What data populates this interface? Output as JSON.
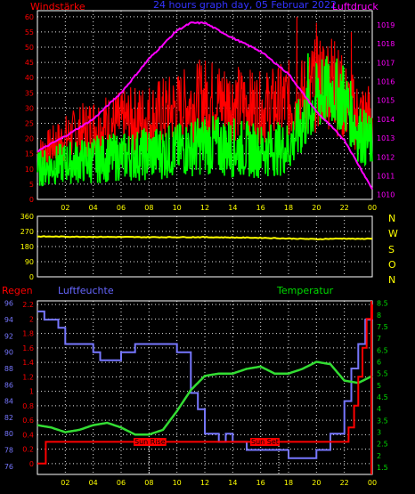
{
  "chart_data": [
    {
      "type": "line",
      "title": "24 hours graph day, 05 Februar 2022",
      "left_axis_label": "Windstärke",
      "right_axis_label": "Luftdruck",
      "x_ticks": [
        "02",
        "04",
        "06",
        "08",
        "10",
        "12",
        "14",
        "16",
        "18",
        "20",
        "22",
        "00"
      ],
      "y_left_ticks": [
        "0",
        "5",
        "10",
        "15",
        "20",
        "25",
        "30",
        "35",
        "40",
        "45",
        "50",
        "55",
        "60"
      ],
      "ylim_left": [
        0,
        62
      ],
      "y_right_ticks": [
        "1010",
        "1011",
        "1012",
        "1013",
        "1014",
        "1015",
        "1016",
        "1017",
        "1018",
        "1019"
      ],
      "ylim_right": [
        1009.75,
        1019.75
      ],
      "grid": true,
      "series": [
        {
          "color": "#ff0000",
          "axis": "left",
          "style": "noisy",
          "x": [
            0,
            2,
            4,
            6,
            8,
            10,
            12,
            14,
            16,
            18,
            19,
            20,
            21,
            22,
            23,
            24
          ],
          "y": [
            15,
            20,
            24,
            25,
            27,
            30,
            33,
            32,
            30,
            32,
            33,
            38,
            40,
            32,
            27,
            27
          ],
          "amplitude": [
            5,
            8,
            10,
            11,
            12,
            12,
            14,
            13,
            12,
            14,
            14,
            16,
            17,
            14,
            12,
            12
          ],
          "spikes": [
            [
              18.6,
              60
            ],
            [
              20.0,
              58
            ],
            [
              21.3,
              52
            ],
            [
              22.5,
              55
            ]
          ]
        },
        {
          "color": "#00ff00",
          "axis": "left",
          "style": "noisy",
          "x": [
            0,
            2,
            4,
            6,
            8,
            10,
            12,
            14,
            16,
            18,
            19,
            20,
            21,
            22,
            23,
            24
          ],
          "y": [
            10,
            12,
            13,
            14,
            15,
            16,
            18,
            17,
            16,
            17,
            25,
            33,
            36,
            33,
            22,
            18
          ],
          "amplitude": [
            6,
            7,
            8,
            8,
            9,
            9,
            10,
            10,
            9,
            9,
            11,
            12,
            12,
            12,
            10,
            9
          ],
          "spikes": [
            [
              19.4,
              48
            ],
            [
              20.4,
              46
            ],
            [
              21.9,
              44
            ]
          ]
        },
        {
          "color": "#ff00ff",
          "axis": "right",
          "style": "smooth",
          "x": [
            0,
            2,
            4,
            6,
            8,
            10,
            11,
            12,
            13,
            14,
            16,
            18,
            20,
            22,
            23,
            24
          ],
          "y": [
            1012.3,
            1013.1,
            1014.0,
            1015.4,
            1017.2,
            1018.7,
            1019.1,
            1019.1,
            1018.7,
            1018.3,
            1017.6,
            1016.4,
            1014.4,
            1012.9,
            1011.6,
            1010.3
          ]
        }
      ]
    },
    {
      "type": "line",
      "y_ticks": [
        "360",
        "270",
        "180",
        "90",
        "0"
      ],
      "ylim": [
        0,
        360
      ],
      "compass_labels": [
        "N",
        "W",
        "S",
        "O",
        "N"
      ],
      "grid": true,
      "series": [
        {
          "color": "#ffff00",
          "x": [
            0,
            4,
            8,
            12,
            16,
            18,
            20,
            22,
            23,
            24
          ],
          "y": [
            240,
            238,
            236,
            236,
            232,
            228,
            224,
            228,
            225,
            228
          ]
        }
      ]
    },
    {
      "type": "line",
      "labels": {
        "rain": "Regen",
        "humidity": "Luftfeuchte",
        "temperature": "Temperatur"
      },
      "x_ticks": [
        "02",
        "04",
        "06",
        "08",
        "10",
        "12",
        "14",
        "16",
        "18",
        "20",
        "22",
        "00"
      ],
      "y_humidity_ticks": [
        "76",
        "78",
        "80",
        "82",
        "84",
        "86",
        "88",
        "90",
        "92",
        "94",
        "96"
      ],
      "ylim_humidity": [
        75,
        96.3
      ],
      "y_rain_ticks": [
        "0",
        "0.2",
        "0.4",
        "0.6",
        "0.8",
        "1",
        "1.2",
        "1.4",
        "1.6",
        "1.8",
        "2",
        "2.2"
      ],
      "ylim_rain": [
        -0.15,
        2.25
      ],
      "y_temp_ticks": [
        "1.5",
        "2",
        "2.5",
        "3",
        "3.5",
        "4",
        "4.5",
        "5",
        "5.5",
        "6",
        "6.5",
        "7",
        "7.5",
        "8",
        "8.5"
      ],
      "ylim_temp": [
        1.2,
        8.6
      ],
      "grid": true,
      "annotations": [
        {
          "text": "Sun Rise",
          "x": 8.0
        },
        {
          "text": "Sun Set",
          "x": 17.3
        }
      ],
      "series": [
        {
          "name": "Luftfeuchte",
          "color": "#7777ff",
          "style": "step",
          "x": [
            0,
            0.5,
            1,
            1.5,
            2,
            3,
            4,
            4.5,
            5,
            6,
            7,
            8,
            9,
            10,
            11,
            11.5,
            12,
            13,
            13.5,
            14,
            15,
            16,
            17,
            18,
            19,
            20,
            21,
            22,
            22.5,
            23,
            23.5,
            24
          ],
          "y": [
            95,
            94,
            94,
            93,
            91,
            91,
            90,
            89,
            89,
            90,
            91,
            91,
            91,
            90,
            85,
            83,
            80,
            79,
            80,
            79,
            78,
            78,
            78,
            77,
            77,
            78,
            80,
            84,
            88,
            91,
            94,
            95
          ]
        },
        {
          "name": "Temperatur",
          "color": "#33dd33",
          "style": "smooth",
          "x": [
            0,
            1,
            2,
            3,
            4,
            5,
            6,
            7,
            8,
            9,
            10,
            11,
            12,
            13,
            14,
            15,
            16,
            17,
            18,
            19,
            20,
            21,
            22,
            23,
            24
          ],
          "y": [
            3.3,
            3.2,
            3.0,
            3.1,
            3.3,
            3.4,
            3.2,
            2.9,
            2.9,
            3.1,
            3.9,
            4.8,
            5.4,
            5.5,
            5.5,
            5.7,
            5.8,
            5.5,
            5.5,
            5.7,
            6.0,
            5.9,
            5.2,
            5.1,
            5.4
          ]
        },
        {
          "name": "Regen",
          "color": "#ff0000",
          "style": "step",
          "x": [
            0,
            0.3,
            0.6,
            22,
            22.3,
            22.7,
            23.0,
            23.3,
            23.6,
            24
          ],
          "y": [
            0,
            0,
            0.3,
            0.3,
            0.5,
            0.8,
            1.2,
            1.6,
            2.0,
            2.2
          ]
        }
      ]
    }
  ]
}
